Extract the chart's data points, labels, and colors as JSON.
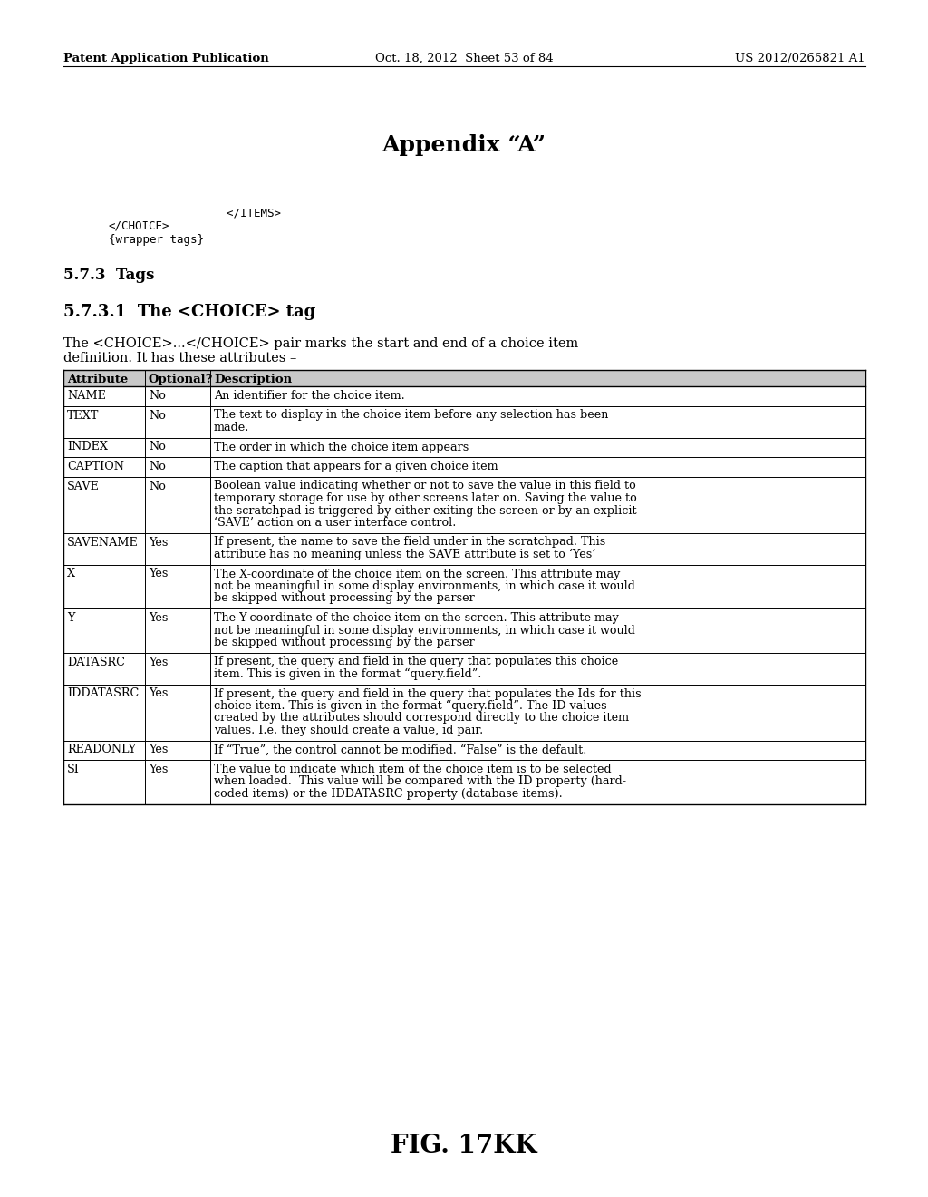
{
  "header_left": "Patent Application Publication",
  "header_middle": "Oct. 18, 2012  Sheet 53 of 84",
  "header_right": "US 2012/0265821 A1",
  "title": "Appendix “A”",
  "code_lines": [
    "        </ITEMS>",
    "</CHOICE>",
    "{wrapper tags}"
  ],
  "section_573": "5.7.3  Tags",
  "section_5731": "5.7.3.1  The <CHOICE> tag",
  "desc_line1": "The <CHOICE>...</CHOICE> pair marks the start and end of a choice item",
  "desc_line2": "definition. It has these attributes –",
  "table_headers": [
    "Attribute",
    "Optional?",
    "Description"
  ],
  "table_rows": [
    [
      "NAME",
      "No",
      "An identifier for the choice item."
    ],
    [
      "TEXT",
      "No",
      "The text to display in the choice item before any selection has been\nmade."
    ],
    [
      "INDEX",
      "No",
      "The order in which the choice item appears"
    ],
    [
      "CAPTION",
      "No",
      "The caption that appears for a given choice item"
    ],
    [
      "SAVE",
      "No",
      "Boolean value indicating whether or not to save the value in this field to\ntemporary storage for use by other screens later on. Saving the value to\nthe scratchpad is triggered by either exiting the screen or by an explicit\n‘SAVE’ action on a user interface control."
    ],
    [
      "SAVENAME",
      "Yes",
      "If present, the name to save the field under in the scratchpad. This\nattribute has no meaning unless the SAVE attribute is set to ‘Yes’"
    ],
    [
      "X",
      "Yes",
      "The X-coordinate of the choice item on the screen. This attribute may\nnot be meaningful in some display environments, in which case it would\nbe skipped without processing by the parser"
    ],
    [
      "Y",
      "Yes",
      "The Y-coordinate of the choice item on the screen. This attribute may\nnot be meaningful in some display environments, in which case it would\nbe skipped without processing by the parser"
    ],
    [
      "DATASRC",
      "Yes",
      "If present, the query and field in the query that populates this choice\nitem. This is given in the format “query.field”."
    ],
    [
      "IDDATASRC",
      "Yes",
      "If present, the query and field in the query that populates the Ids for this\nchoice item. This is given in the format “query.field”. The ID values\ncreated by the attributes should correspond directly to the choice item\nvalues. I.e. they should create a value, id pair."
    ],
    [
      "READONLY",
      "Yes",
      "If “True”, the control cannot be modified. “False” is the default."
    ],
    [
      "SI",
      "Yes",
      "The value to indicate which item of the choice item is to be selected\nwhen loaded.  This value will be compared with the ID property (hard-\ncoded items) or the IDDATASRC property (database items)."
    ]
  ],
  "figure_label": "FIG. 17KK",
  "bg_color": "#ffffff"
}
